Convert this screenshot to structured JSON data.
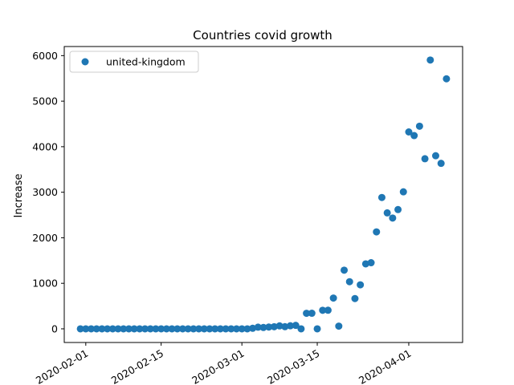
{
  "chart_data": {
    "type": "scatter",
    "title": "Countries covid growth",
    "xlabel": "",
    "ylabel": "Increase",
    "x_axis": {
      "type": "date",
      "range": [
        "2020-01-28",
        "2020-04-11"
      ],
      "ticks": [
        "2020-02-01",
        "2020-02-15",
        "2020-03-01",
        "2020-03-15",
        "2020-04-01"
      ]
    },
    "ylim": [
      -300,
      6200
    ],
    "yticks": [
      0,
      1000,
      2000,
      3000,
      4000,
      5000,
      6000
    ],
    "grid": false,
    "legend": {
      "position": "top-left"
    },
    "series": [
      {
        "name": "united-kingdom",
        "color": "#1f77b4",
        "marker": "circle",
        "points": [
          [
            "2020-01-31",
            0
          ],
          [
            "2020-02-01",
            0
          ],
          [
            "2020-02-02",
            0
          ],
          [
            "2020-02-03",
            0
          ],
          [
            "2020-02-04",
            0
          ],
          [
            "2020-02-05",
            0
          ],
          [
            "2020-02-06",
            0
          ],
          [
            "2020-02-07",
            0
          ],
          [
            "2020-02-08",
            0
          ],
          [
            "2020-02-09",
            0
          ],
          [
            "2020-02-10",
            0
          ],
          [
            "2020-02-11",
            0
          ],
          [
            "2020-02-12",
            0
          ],
          [
            "2020-02-13",
            0
          ],
          [
            "2020-02-14",
            0
          ],
          [
            "2020-02-15",
            0
          ],
          [
            "2020-02-16",
            0
          ],
          [
            "2020-02-17",
            0
          ],
          [
            "2020-02-18",
            0
          ],
          [
            "2020-02-19",
            0
          ],
          [
            "2020-02-20",
            0
          ],
          [
            "2020-02-21",
            0
          ],
          [
            "2020-02-22",
            0
          ],
          [
            "2020-02-23",
            0
          ],
          [
            "2020-02-24",
            0
          ],
          [
            "2020-02-25",
            0
          ],
          [
            "2020-02-26",
            0
          ],
          [
            "2020-02-27",
            0
          ],
          [
            "2020-02-28",
            0
          ],
          [
            "2020-02-29",
            0
          ],
          [
            "2020-03-01",
            0
          ],
          [
            "2020-03-02",
            0
          ],
          [
            "2020-03-03",
            12
          ],
          [
            "2020-03-04",
            36
          ],
          [
            "2020-03-05",
            30
          ],
          [
            "2020-03-06",
            40
          ],
          [
            "2020-03-07",
            46
          ],
          [
            "2020-03-08",
            65
          ],
          [
            "2020-03-09",
            47
          ],
          [
            "2020-03-10",
            67
          ],
          [
            "2020-03-11",
            76
          ],
          [
            "2020-03-12",
            0
          ],
          [
            "2020-03-13",
            341
          ],
          [
            "2020-03-14",
            342
          ],
          [
            "2020-03-15",
            0
          ],
          [
            "2020-03-16",
            407
          ],
          [
            "2020-03-17",
            408
          ],
          [
            "2020-03-18",
            676
          ],
          [
            "2020-03-19",
            60
          ],
          [
            "2020-03-20",
            1288
          ],
          [
            "2020-03-21",
            1035
          ],
          [
            "2020-03-22",
            665
          ],
          [
            "2020-03-23",
            967
          ],
          [
            "2020-03-24",
            1427
          ],
          [
            "2020-03-25",
            1452
          ],
          [
            "2020-03-26",
            2129
          ],
          [
            "2020-03-27",
            2885
          ],
          [
            "2020-03-28",
            2546
          ],
          [
            "2020-03-29",
            2433
          ],
          [
            "2020-03-30",
            2619
          ],
          [
            "2020-03-31",
            3009
          ],
          [
            "2020-04-01",
            4324
          ],
          [
            "2020-04-02",
            4244
          ],
          [
            "2020-04-03",
            4450
          ],
          [
            "2020-04-04",
            3735
          ],
          [
            "2020-04-05",
            5903
          ],
          [
            "2020-04-06",
            3802
          ],
          [
            "2020-04-07",
            3634
          ],
          [
            "2020-04-08",
            5491
          ]
        ]
      }
    ]
  }
}
